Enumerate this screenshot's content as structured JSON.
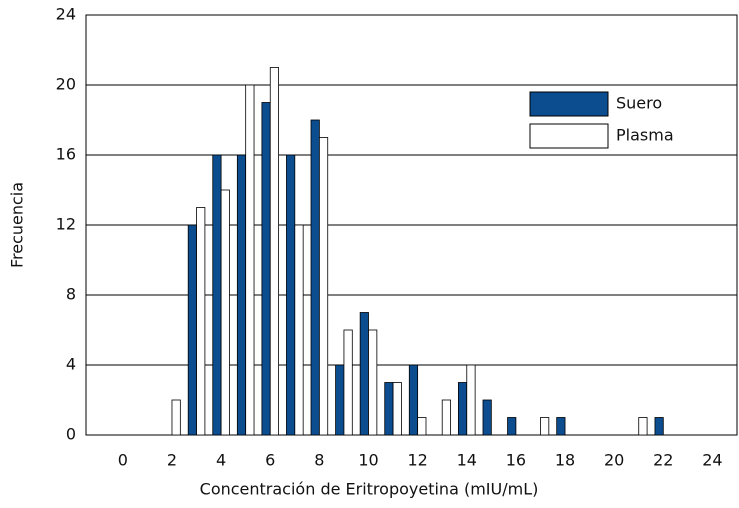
{
  "chart_data": {
    "type": "bar",
    "xlabel": "Concentración de Eritropoyetina (mIU/mL)",
    "ylabel": "Frecuencia",
    "x": [
      2,
      3,
      4,
      5,
      6,
      7,
      8,
      9,
      10,
      11,
      12,
      13,
      14,
      15,
      16,
      17,
      18,
      19,
      20,
      21,
      22
    ],
    "series": [
      {
        "name": "Suero",
        "color": "#0b4d8f",
        "values": [
          0,
          12,
          16,
          16,
          19,
          16,
          18,
          4,
          7,
          3,
          4,
          0,
          3,
          2,
          1,
          0,
          1,
          0,
          0,
          0,
          1
        ]
      },
      {
        "name": "Plasma",
        "color": "#ffffff",
        "values": [
          2,
          13,
          14,
          20,
          21,
          12,
          17,
          6,
          6,
          3,
          1,
          2,
          4,
          0,
          0,
          1,
          0,
          0,
          0,
          1,
          0
        ]
      }
    ],
    "xlim": [
      -1.5,
      25
    ],
    "xticks": [
      0,
      2,
      4,
      6,
      8,
      10,
      12,
      14,
      16,
      18,
      20,
      22,
      24
    ],
    "ylim": [
      0,
      24
    ],
    "yticks": [
      0,
      4,
      8,
      12,
      16,
      20,
      24
    ],
    "grid": true,
    "legend": "upper right"
  }
}
